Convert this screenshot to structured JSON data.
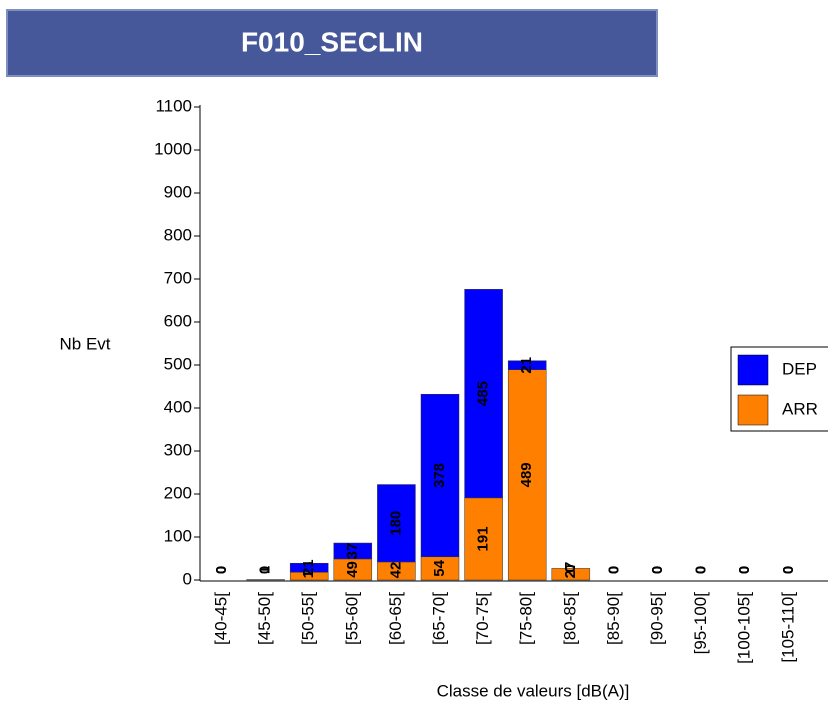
{
  "chart_data": {
    "type": "stacked_bar",
    "title": "F010_SECLIN",
    "x_label": "Classe de valeurs [dB(A)]",
    "y_label": "Nb Evt",
    "categories": [
      "[40-45[",
      "[45-50[",
      "[50-55[",
      "[55-60[",
      "[60-65[",
      "[65-70[",
      "[70-75[",
      "[75-80[",
      "[80-85[",
      "[85-90[",
      "[90-95[",
      "[95-100[",
      "[100-105[",
      "[105-110["
    ],
    "series": [
      {
        "name": "DEP",
        "color": "#0000ff",
        "values": [
          0,
          1,
          21,
          37,
          180,
          378,
          485,
          21,
          0,
          0,
          0,
          0,
          0,
          0
        ]
      },
      {
        "name": "ARR",
        "color": "#ff8000",
        "values": [
          0,
          0,
          18,
          49,
          42,
          54,
          191,
          489,
          27,
          0,
          0,
          0,
          0,
          0
        ]
      }
    ],
    "ylim": [
      0,
      1100
    ],
    "yticks": [
      0,
      100,
      200,
      300,
      400,
      500,
      600,
      700,
      800,
      900,
      1000,
      1100
    ]
  }
}
